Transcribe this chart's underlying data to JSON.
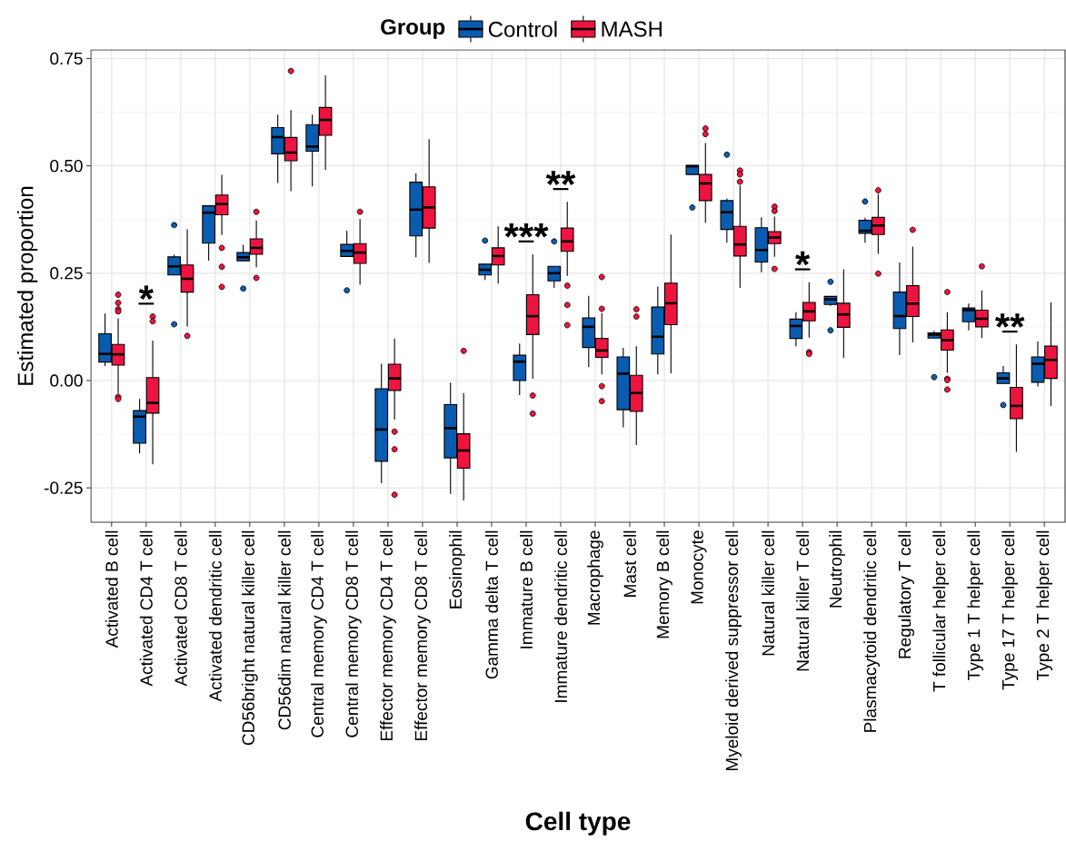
{
  "chart_data": {
    "type": "box",
    "xlabel": "Cell type",
    "ylabel": "Estimated proportion",
    "legend_title": "Group",
    "legend": "top",
    "grid": true,
    "ylim": [
      -0.33,
      0.77
    ],
    "yticks": [
      {
        "value": -0.25,
        "label": "-0.25"
      },
      {
        "value": 0,
        "label": "0.00"
      },
      {
        "value": 0.25,
        "label": "0.25"
      },
      {
        "value": 0.5,
        "label": "0.50"
      },
      {
        "value": 0.75,
        "label": "0.75"
      }
    ],
    "categories": [
      "Activated B cell",
      "Activated CD4 T cell",
      "Activated CD8 T cell",
      "Activated dendritic cell",
      "CD56bright natural killer cell",
      "CD56dim natural killer cell",
      "Central memory CD4 T cell",
      "Central memory CD8 T cell",
      "Effector memory CD4 T cell",
      "Effector memory CD8 T cell",
      "Eosinophil",
      "Gamma delta T cell",
      "Immature B cell",
      "Immature dendritic cell",
      "Macrophage",
      "Mast cell",
      "Memory B cell",
      "Monocyte",
      "Myeloid derived suppressor cell",
      "Natural killer cell",
      "Natural killer T cell",
      "Neutrophil",
      "Plasmacytoid dendritic cell",
      "Regulatory T cell",
      "T follicular helper cell",
      "Type 1 T helper cell",
      "Type 17 T helper cell",
      "Type 2 T helper cell"
    ],
    "annotations": [
      "*",
      "***",
      "**",
      "*",
      "**"
    ],
    "series": [
      {
        "name": "Control",
        "color": "#0A5CB0",
        "boxes": [
          {
            "low": 0.034,
            "q1": 0.043,
            "median": 0.062,
            "q3": 0.109,
            "high": 0.156
          },
          {
            "low": -0.17,
            "q1": -0.146,
            "median": -0.084,
            "q3": -0.07,
            "high": -0.043
          },
          {
            "low": 0.246,
            "q1": 0.246,
            "median": 0.266,
            "q3": 0.288,
            "high": 0.293,
            "outliers": [
              0.362,
              0.131
            ]
          },
          {
            "low": 0.279,
            "q1": 0.32,
            "median": 0.391,
            "q3": 0.407,
            "high": 0.407
          },
          {
            "low": 0.279,
            "q1": 0.279,
            "median": 0.287,
            "q3": 0.298,
            "high": 0.316,
            "outliers": [
              0.214
            ]
          },
          {
            "low": 0.46,
            "q1": 0.528,
            "median": 0.567,
            "q3": 0.589,
            "high": 0.619
          },
          {
            "low": 0.452,
            "q1": 0.534,
            "median": 0.545,
            "q3": 0.596,
            "high": 0.619
          },
          {
            "low": 0.289,
            "q1": 0.289,
            "median": 0.302,
            "q3": 0.317,
            "high": 0.349,
            "outliers": [
              0.21
            ]
          },
          {
            "low": -0.239,
            "q1": -0.188,
            "median": -0.114,
            "q3": -0.019,
            "high": 0.039
          },
          {
            "low": 0.287,
            "q1": 0.337,
            "median": 0.398,
            "q3": 0.462,
            "high": 0.483
          },
          {
            "low": -0.264,
            "q1": -0.18,
            "median": -0.111,
            "q3": -0.056,
            "high": -0.005
          },
          {
            "low": 0.234,
            "q1": 0.246,
            "median": 0.258,
            "q3": 0.271,
            "high": 0.273,
            "outliers": [
              0.326
            ]
          },
          {
            "low": -0.034,
            "q1": 0.0,
            "median": 0.044,
            "q3": 0.059,
            "high": 0.086
          },
          {
            "low": 0.216,
            "q1": 0.232,
            "median": 0.25,
            "q3": 0.266,
            "high": 0.266,
            "outliers": [
              0.324
            ]
          },
          {
            "low": 0.031,
            "q1": 0.077,
            "median": 0.125,
            "q3": 0.146,
            "high": 0.197
          },
          {
            "low": -0.109,
            "q1": -0.068,
            "median": 0.016,
            "q3": 0.055,
            "high": 0.076
          },
          {
            "low": 0.014,
            "q1": 0.062,
            "median": 0.102,
            "q3": 0.171,
            "high": 0.219
          },
          {
            "low": 0.48,
            "q1": 0.48,
            "median": 0.499,
            "q3": 0.501,
            "high": 0.501,
            "outliers": [
              0.403
            ]
          },
          {
            "low": 0.321,
            "q1": 0.352,
            "median": 0.392,
            "q3": 0.419,
            "high": 0.424,
            "outliers": [
              0.526
            ]
          },
          {
            "low": 0.252,
            "q1": 0.276,
            "median": 0.304,
            "q3": 0.356,
            "high": 0.38
          },
          {
            "low": 0.08,
            "q1": 0.098,
            "median": 0.127,
            "q3": 0.143,
            "high": 0.159
          },
          {
            "low": 0.174,
            "q1": 0.177,
            "median": 0.189,
            "q3": 0.196,
            "high": 0.196,
            "outliers": [
              0.23,
              0.117
            ]
          },
          {
            "low": 0.321,
            "q1": 0.343,
            "median": 0.349,
            "q3": 0.373,
            "high": 0.379,
            "outliers": [
              0.417
            ]
          },
          {
            "low": 0.059,
            "q1": 0.121,
            "median": 0.15,
            "q3": 0.206,
            "high": 0.275
          },
          {
            "low": 0.099,
            "q1": 0.099,
            "median": 0.107,
            "q3": 0.111,
            "high": 0.116,
            "outliers": [
              0.008
            ]
          },
          {
            "low": 0.117,
            "q1": 0.137,
            "median": 0.164,
            "q3": 0.169,
            "high": 0.179
          },
          {
            "low": -0.007,
            "q1": -0.007,
            "median": 0.005,
            "q3": 0.018,
            "high": 0.034,
            "outliers": [
              -0.057
            ]
          },
          {
            "low": -0.014,
            "q1": -0.004,
            "median": 0.039,
            "q3": 0.055,
            "high": 0.091
          }
        ]
      },
      {
        "name": "MASH",
        "color": "#EE1440",
        "boxes": [
          {
            "low": -0.03,
            "q1": 0.036,
            "median": 0.061,
            "q3": 0.084,
            "high": 0.145,
            "outliers": [
              0.2,
              0.181,
              0.166,
              0.161,
              -0.038,
              -0.043
            ]
          },
          {
            "low": -0.195,
            "q1": -0.076,
            "median": -0.052,
            "q3": 0.007,
            "high": 0.093,
            "outliers": [
              0.149,
              0.138
            ]
          },
          {
            "low": 0.126,
            "q1": 0.206,
            "median": 0.237,
            "q3": 0.269,
            "high": 0.352,
            "outliers": [
              0.104
            ]
          },
          {
            "low": 0.339,
            "q1": 0.386,
            "median": 0.411,
            "q3": 0.432,
            "high": 0.479,
            "outliers": [
              0.309,
              0.265,
              0.218
            ]
          },
          {
            "low": 0.264,
            "q1": 0.294,
            "median": 0.309,
            "q3": 0.33,
            "high": 0.373,
            "outliers": [
              0.393,
              0.239
            ]
          },
          {
            "low": 0.441,
            "q1": 0.512,
            "median": 0.531,
            "q3": 0.566,
            "high": 0.63,
            "outliers": [
              0.721
            ]
          },
          {
            "low": 0.491,
            "q1": 0.571,
            "median": 0.607,
            "q3": 0.636,
            "high": 0.711
          },
          {
            "low": 0.223,
            "q1": 0.273,
            "median": 0.298,
            "q3": 0.319,
            "high": 0.376,
            "outliers": [
              0.393
            ]
          },
          {
            "low": -0.091,
            "q1": -0.023,
            "median": 0.005,
            "q3": 0.038,
            "high": 0.098,
            "outliers": [
              -0.119,
              -0.16,
              -0.266
            ]
          },
          {
            "low": 0.274,
            "q1": 0.355,
            "median": 0.403,
            "q3": 0.451,
            "high": 0.562
          },
          {
            "low": -0.279,
            "q1": -0.204,
            "median": -0.163,
            "q3": -0.124,
            "high": -0.029,
            "outliers": [
              0.069
            ]
          },
          {
            "low": 0.226,
            "q1": 0.269,
            "median": 0.29,
            "q3": 0.309,
            "high": 0.359
          },
          {
            "low": 0.004,
            "q1": 0.107,
            "median": 0.15,
            "q3": 0.2,
            "high": 0.294,
            "outliers": [
              -0.035,
              -0.077
            ]
          },
          {
            "low": 0.244,
            "q1": 0.301,
            "median": 0.324,
            "q3": 0.355,
            "high": 0.416,
            "outliers": [
              0.221,
              0.176,
              0.129
            ]
          },
          {
            "low": 0.014,
            "q1": 0.054,
            "median": 0.07,
            "q3": 0.098,
            "high": 0.157,
            "outliers": [
              0.241,
              0.167,
              -0.013,
              -0.048
            ]
          },
          {
            "low": -0.15,
            "q1": -0.072,
            "median": -0.029,
            "q3": 0.012,
            "high": 0.08,
            "outliers": [
              0.166,
              0.149
            ]
          },
          {
            "low": 0.017,
            "q1": 0.13,
            "median": 0.18,
            "q3": 0.227,
            "high": 0.34
          },
          {
            "low": 0.367,
            "q1": 0.419,
            "median": 0.459,
            "q3": 0.48,
            "high": 0.553,
            "outliers": [
              0.587,
              0.574
            ]
          },
          {
            "low": 0.216,
            "q1": 0.29,
            "median": 0.317,
            "q3": 0.359,
            "high": 0.454,
            "outliers": [
              0.489,
              0.48,
              0.463
            ]
          },
          {
            "low": 0.288,
            "q1": 0.319,
            "median": 0.333,
            "q3": 0.347,
            "high": 0.382,
            "outliers": [
              0.405,
              0.395,
              0.26
            ]
          },
          {
            "low": 0.1,
            "q1": 0.139,
            "median": 0.161,
            "q3": 0.182,
            "high": 0.229,
            "outliers": [
              0.066,
              0.062
            ]
          },
          {
            "low": 0.053,
            "q1": 0.124,
            "median": 0.154,
            "q3": 0.18,
            "high": 0.259
          },
          {
            "low": 0.295,
            "q1": 0.34,
            "median": 0.361,
            "q3": 0.38,
            "high": 0.434,
            "outliers": [
              0.443,
              0.249
            ]
          },
          {
            "low": 0.089,
            "q1": 0.149,
            "median": 0.179,
            "q3": 0.221,
            "high": 0.312,
            "outliers": [
              0.351
            ]
          },
          {
            "low": 0.018,
            "q1": 0.071,
            "median": 0.094,
            "q3": 0.118,
            "high": 0.159,
            "outliers": [
              0.206,
              0.004,
              0.001,
              -0.021
            ]
          },
          {
            "low": 0.099,
            "q1": 0.125,
            "median": 0.144,
            "q3": 0.164,
            "high": 0.21,
            "outliers": [
              0.266
            ]
          },
          {
            "low": -0.166,
            "q1": -0.089,
            "median": -0.059,
            "q3": -0.016,
            "high": 0.084
          },
          {
            "low": -0.059,
            "q1": 0.005,
            "median": 0.048,
            "q3": 0.08,
            "high": 0.182
          }
        ]
      }
    ]
  }
}
